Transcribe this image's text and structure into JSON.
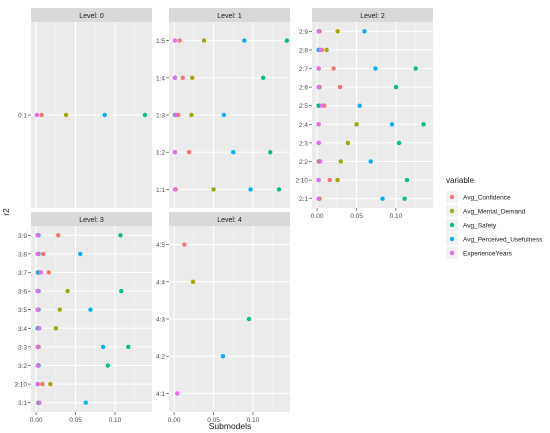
{
  "chart_data": {
    "type": "scatter",
    "xlabel": "Submodels",
    "ylabel": "r2",
    "legend": {
      "title": "variable",
      "position": "right",
      "entries": [
        {
          "name": "Avg_Confidence",
          "color": "#F8766D"
        },
        {
          "name": "Avg_Mental_Demand",
          "color": "#A3A500"
        },
        {
          "name": "Avg_Safety",
          "color": "#00BF7D"
        },
        {
          "name": "Avg_Perceived_Usefulness",
          "color": "#00B0F6"
        },
        {
          "name": "ExperienceYears",
          "color": "#E76BF3"
        }
      ]
    },
    "x_ticks": [
      "0.00",
      "0.05",
      "0.10"
    ],
    "grid": true,
    "panels": [
      {
        "strip": "Level: 0",
        "categories": [
          "0:1"
        ],
        "series": {
          "Avg_Confidence": [
            0.007
          ],
          "Avg_Mental_Demand": [
            0.038
          ],
          "Avg_Safety": [
            0.138
          ],
          "Avg_Perceived_Usefulness": [
            0.087
          ],
          "ExperienceYears": [
            0.001
          ]
        }
      },
      {
        "strip": "Level: 1",
        "categories": [
          "1:1",
          "1:2",
          "1:3",
          "1:4",
          "1:5"
        ],
        "series": {
          "Avg_Confidence": [
            0.002,
            0.019,
            0.005,
            0.011,
            0.007
          ],
          "Avg_Mental_Demand": [
            0.05,
            0.001,
            0.022,
            0.023,
            0.038
          ],
          "Avg_Safety": [
            0.133,
            0.122,
            0.001,
            0.113,
            0.143
          ],
          "Avg_Perceived_Usefulness": [
            0.097,
            0.075,
            0.063,
            0.001,
            0.089
          ],
          "ExperienceYears": [
            0.001,
            0.001,
            0.002,
            0.001,
            0.001
          ]
        }
      },
      {
        "strip": "Level: 2",
        "categories": [
          "2:1",
          "2:10",
          "2:2",
          "2:3",
          "2:4",
          "2:5",
          "2:6",
          "2:7",
          "2:8",
          "2:9"
        ],
        "series": {
          "Avg_Confidence": [
            0.002,
            0.016,
            0.002,
            0.002,
            0.002,
            0.009,
            0.029,
            0.021,
            0.006,
            0.003
          ],
          "Avg_Mental_Demand": [
            0.003,
            0.026,
            0.03,
            0.039,
            0.05,
            0.002,
            0.003,
            0.002,
            0.012,
            0.026
          ],
          "Avg_Safety": [
            0.111,
            0.114,
            0.003,
            0.104,
            0.135,
            0.002,
            0.1,
            0.125,
            0.002,
            0.002
          ],
          "Avg_Perceived_Usefulness": [
            0.083,
            0.002,
            0.068,
            0.002,
            0.095,
            0.054,
            0.002,
            0.074,
            0.002,
            0.06
          ],
          "ExperienceYears": [
            0.002,
            0.002,
            0.004,
            0.002,
            0.002,
            0.006,
            0.002,
            0.002,
            0.004,
            0.002
          ]
        }
      },
      {
        "strip": "Level: 3",
        "categories": [
          "3:1",
          "3:10",
          "3:2",
          "3:3",
          "3:4",
          "3:5",
          "3:6",
          "3:7",
          "3:8",
          "3:9"
        ],
        "series": {
          "Avg_Confidence": [
            0.003,
            0.008,
            0.003,
            0.003,
            0.003,
            0.002,
            0.002,
            0.016,
            0.009,
            0.028
          ],
          "Avg_Mental_Demand": [
            0.004,
            0.018,
            0.003,
            0.003,
            0.025,
            0.03,
            0.04,
            0.002,
            0.002,
            0.002
          ],
          "Avg_Safety": [
            0.003,
            0.002,
            0.091,
            0.117,
            0.002,
            0.003,
            0.108,
            0.003,
            0.003,
            0.107
          ],
          "Avg_Perceived_Usefulness": [
            0.063,
            0.002,
            0.003,
            0.085,
            0.003,
            0.069,
            0.003,
            0.003,
            0.056,
            0.003
          ],
          "ExperienceYears": [
            0.004,
            0.002,
            0.002,
            0.002,
            0.004,
            0.002,
            0.002,
            0.006,
            0.002,
            0.002
          ]
        }
      },
      {
        "strip": "Level: 4",
        "categories": [
          "4:1",
          "4:2",
          "4:3",
          "4:4",
          "4:5"
        ],
        "series": {
          "Avg_Confidence": [
            null,
            null,
            null,
            null,
            0.013
          ],
          "Avg_Mental_Demand": [
            null,
            null,
            null,
            0.024,
            null
          ],
          "Avg_Safety": [
            null,
            null,
            0.095,
            null,
            null
          ],
          "Avg_Perceived_Usefulness": [
            null,
            0.062,
            null,
            null,
            null
          ],
          "ExperienceYears": [
            0.004,
            null,
            null,
            null,
            null
          ]
        }
      }
    ]
  }
}
